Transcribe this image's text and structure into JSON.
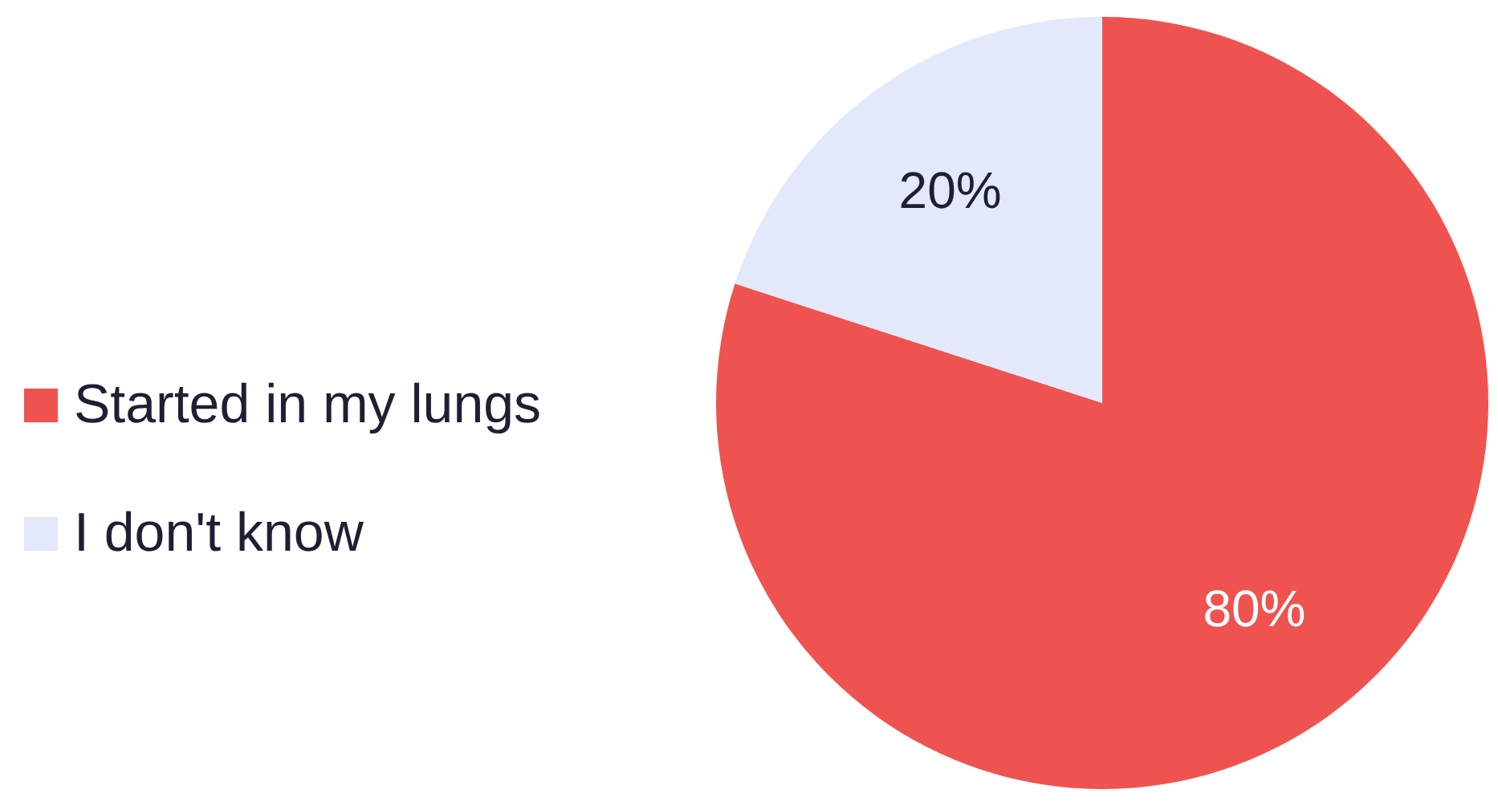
{
  "chart_data": {
    "type": "pie",
    "categories": [
      "Started in my lungs",
      "I don't know"
    ],
    "values": [
      80,
      20
    ],
    "value_labels": [
      "80%",
      "20%"
    ],
    "colors": [
      "#ef5350",
      "#e3e9fa"
    ],
    "legend": "left"
  }
}
